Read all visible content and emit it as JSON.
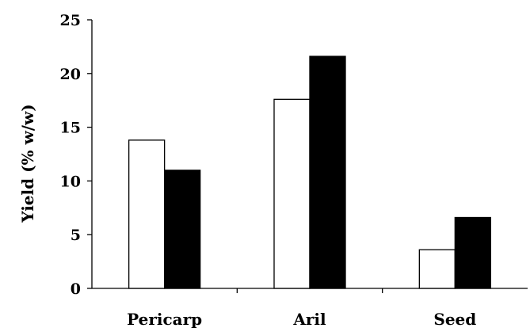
{
  "chart_data": {
    "type": "bar",
    "title": "",
    "xlabel": "",
    "ylabel": "Yield (% w/w)",
    "categories": [
      "Pericarp",
      "Aril",
      "Seed"
    ],
    "series": [
      {
        "values": [
          13.8,
          17.6,
          3.6
        ],
        "color": "#ffffff"
      },
      {
        "values": [
          11.0,
          21.6,
          6.6
        ],
        "color": "#000000"
      }
    ],
    "ylim": [
      0,
      25
    ],
    "yticks": [
      "0",
      "5",
      "10",
      "15",
      "20",
      "25"
    ],
    "grid": false,
    "legend": "none"
  }
}
